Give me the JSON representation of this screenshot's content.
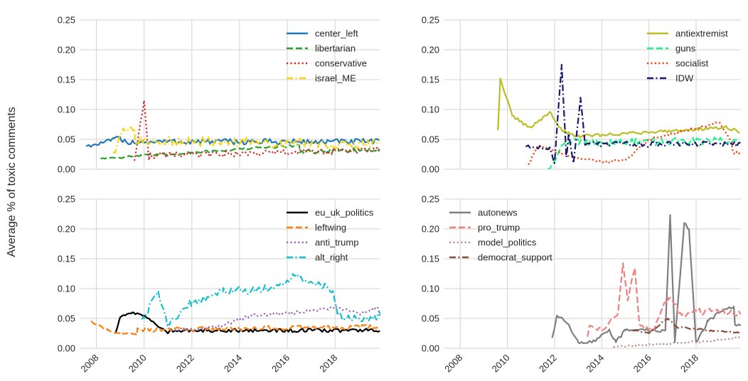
{
  "figure": {
    "ylabel": "Average % of toxic comments"
  },
  "chart_data": [
    {
      "type": "line",
      "panel": "top-left",
      "xlim": [
        2007.3,
        2019.9
      ],
      "ylim": [
        0,
        0.25
      ],
      "xticks": [
        2008,
        2010,
        2012,
        2014,
        2016,
        2018
      ],
      "yticks": [
        "0.00",
        "0.05",
        "0.10",
        "0.15",
        "0.20",
        "0.25"
      ],
      "show_xtick_labels": false,
      "legend_loc": "upper-right",
      "series": [
        {
          "name": "center_left",
          "color": "#1f77b4",
          "dash": "solid",
          "start": 2007.6,
          "end": 2019.9,
          "base": 0.046,
          "amp": 0.005,
          "trend": 0.0,
          "points": [
            [
              2007.6,
              0.039
            ],
            [
              2008.0,
              0.041
            ],
            [
              2009.0,
              0.054
            ]
          ]
        },
        {
          "name": "libertarian",
          "color": "#2ca02c",
          "dash": "dashed",
          "start": 2008.2,
          "end": 2019.9,
          "base": 0.027,
          "amp": 0.004,
          "trend": 0.001,
          "points": [
            [
              2008.2,
              0.018
            ],
            [
              2016.5,
              0.04
            ]
          ]
        },
        {
          "name": "conservative",
          "color": "#d62728",
          "dash": "dotted",
          "start": 2009.6,
          "end": 2019.9,
          "base": 0.026,
          "amp": 0.005,
          "trend": 0.001,
          "points": [
            [
              2009.6,
              0.015
            ],
            [
              2010.0,
              0.115
            ],
            [
              2010.2,
              0.015
            ]
          ]
        },
        {
          "name": "israel_ME",
          "color": "#f5d50f",
          "dash": "dashdot",
          "start": 2008.7,
          "end": 2019.9,
          "base": 0.045,
          "amp": 0.008,
          "trend": -0.0005,
          "points": [
            [
              2008.8,
              0.03
            ],
            [
              2009.1,
              0.065
            ],
            [
              2009.6,
              0.068
            ]
          ]
        }
      ]
    },
    {
      "type": "line",
      "panel": "top-right",
      "xlim": [
        2007.3,
        2019.9
      ],
      "ylim": [
        0,
        0.25
      ],
      "xticks": [
        2008,
        2010,
        2012,
        2014,
        2016,
        2018
      ],
      "yticks": [
        "0.00",
        "0.05",
        "0.10",
        "0.15",
        "0.20",
        "0.25"
      ],
      "show_xtick_labels": false,
      "legend_loc": "upper-right",
      "series": [
        {
          "name": "antiextremist",
          "color": "#bcbd22",
          "dash": "solid",
          "start": 2009.6,
          "end": 2019.9,
          "base": 0.058,
          "amp": 0.005,
          "trend": 0.001,
          "points": [
            [
              2009.6,
              0.066
            ],
            [
              2009.7,
              0.152
            ],
            [
              2010.2,
              0.09
            ],
            [
              2010.7,
              0.075
            ],
            [
              2011.0,
              0.07
            ],
            [
              2011.8,
              0.096
            ],
            [
              2012.3,
              0.065
            ],
            [
              2013.0,
              0.055
            ],
            [
              2019.3,
              0.07
            ]
          ]
        },
        {
          "name": "guns",
          "color": "#1ef287",
          "dash": "dashed",
          "start": 2011.7,
          "end": 2019.9,
          "base": 0.045,
          "amp": 0.006,
          "trend": 0.0005,
          "points": [
            [
              2011.8,
              0.0
            ],
            [
              2012.3,
              0.04
            ],
            [
              2013.0,
              0.05
            ]
          ]
        },
        {
          "name": "socialist",
          "color": "#f2400f",
          "dash": "dotted",
          "start": 2010.9,
          "end": 2019.9,
          "base": 0.015,
          "amp": 0.004,
          "trend": 0.002,
          "points": [
            [
              2010.9,
              0.008
            ],
            [
              2011.3,
              0.04
            ],
            [
              2012.8,
              0.02
            ],
            [
              2014.0,
              0.012
            ],
            [
              2015.0,
              0.015
            ],
            [
              2016.0,
              0.05
            ],
            [
              2019.0,
              0.078
            ],
            [
              2019.5,
              0.045
            ]
          ]
        },
        {
          "name": "IDW",
          "color": "#191970",
          "dash": "dashdot",
          "start": 2010.8,
          "end": 2019.9,
          "base": 0.042,
          "amp": 0.005,
          "trend": 0.0,
          "points": [
            [
              2010.8,
              0.038
            ],
            [
              2011.8,
              0.035
            ],
            [
              2012.0,
              0.01
            ],
            [
              2012.3,
              0.175
            ],
            [
              2012.5,
              0.02
            ],
            [
              2012.6,
              0.06
            ],
            [
              2012.8,
              0.01
            ],
            [
              2013.1,
              0.12
            ],
            [
              2013.3,
              0.04
            ]
          ]
        }
      ]
    },
    {
      "type": "line",
      "panel": "bottom-left",
      "xlim": [
        2007.3,
        2019.9
      ],
      "ylim": [
        0,
        0.25
      ],
      "xticks": [
        2008,
        2010,
        2012,
        2014,
        2016,
        2018
      ],
      "yticks": [
        "0.00",
        "0.05",
        "0.10",
        "0.15",
        "0.20",
        "0.25"
      ],
      "show_xtick_labels": true,
      "legend_loc": "upper-right",
      "series": [
        {
          "name": "eu_uk_politics",
          "color": "#000000",
          "dash": "solid",
          "start": 2008.8,
          "end": 2019.9,
          "base": 0.03,
          "amp": 0.003,
          "trend": 0.0,
          "points": [
            [
              2008.8,
              0.025
            ],
            [
              2009.0,
              0.052
            ],
            [
              2009.5,
              0.06
            ],
            [
              2010.0,
              0.055
            ],
            [
              2011.0,
              0.025
            ]
          ]
        },
        {
          "name": "leftwing",
          "color": "#ff7f0e",
          "dash": "dashed",
          "start": 2007.8,
          "end": 2019.9,
          "base": 0.033,
          "amp": 0.004,
          "trend": 0.0005,
          "points": [
            [
              2007.8,
              0.045
            ],
            [
              2008.5,
              0.03
            ],
            [
              2009.7,
              0.022
            ]
          ]
        },
        {
          "name": "anti_trump",
          "color": "#9467bd",
          "dash": "dotted",
          "start": 2011.3,
          "end": 2019.9,
          "base": 0.045,
          "amp": 0.005,
          "trend": 0.002,
          "points": [
            [
              2011.3,
              0.03
            ],
            [
              2013.0,
              0.035
            ],
            [
              2014.5,
              0.055
            ],
            [
              2016.5,
              0.06
            ],
            [
              2018.0,
              0.068
            ],
            [
              2019.0,
              0.058
            ],
            [
              2019.8,
              0.068
            ]
          ]
        },
        {
          "name": "alt_right",
          "color": "#17becf",
          "dash": "dashdot",
          "start": 2009.9,
          "end": 2019.9,
          "base": 0.075,
          "amp": 0.014,
          "trend": 0.002,
          "points": [
            [
              2010.0,
              0.05
            ],
            [
              2010.6,
              0.095
            ],
            [
              2011.0,
              0.04
            ],
            [
              2012.0,
              0.078
            ],
            [
              2013.3,
              0.095
            ],
            [
              2015.4,
              0.1
            ],
            [
              2016.2,
              0.12
            ],
            [
              2017.9,
              0.098
            ],
            [
              2018.1,
              0.055
            ],
            [
              2019.0,
              0.05
            ],
            [
              2019.9,
              0.055
            ]
          ]
        }
      ]
    },
    {
      "type": "line",
      "panel": "bottom-right",
      "xlim": [
        2007.3,
        2019.9
      ],
      "ylim": [
        0,
        0.25
      ],
      "xticks": [
        2008,
        2010,
        2012,
        2014,
        2016,
        2018
      ],
      "yticks": [
        "0.00",
        "0.05",
        "0.10",
        "0.15",
        "0.20",
        "0.25"
      ],
      "show_xtick_labels": true,
      "legend_loc": "upper-left",
      "series": [
        {
          "name": "autonews",
          "color": "#7f7f7f",
          "dash": "solid",
          "start": 2011.9,
          "end": 2019.9,
          "base": 0.035,
          "amp": 0.006,
          "trend": 0.0,
          "points": [
            [
              2011.9,
              0.018
            ],
            [
              2012.1,
              0.055
            ],
            [
              2012.6,
              0.04
            ],
            [
              2013.0,
              0.01
            ],
            [
              2013.6,
              0.01
            ],
            [
              2014.3,
              0.03
            ],
            [
              2014.6,
              0.01
            ],
            [
              2015.0,
              0.03
            ],
            [
              2016.7,
              0.03
            ],
            [
              2016.9,
              0.222
            ],
            [
              2017.1,
              0.01
            ],
            [
              2017.5,
              0.21
            ],
            [
              2017.7,
              0.2
            ],
            [
              2018.0,
              0.01
            ],
            [
              2018.5,
              0.045
            ],
            [
              2019.0,
              0.06
            ],
            [
              2019.6,
              0.07
            ]
          ]
        },
        {
          "name": "pro_trump",
          "color": "#f08080",
          "dash": "dashed",
          "start": 2013.4,
          "end": 2019.9,
          "base": 0.06,
          "amp": 0.007,
          "trend": 0.0,
          "points": [
            [
              2013.4,
              0.02
            ],
            [
              2013.5,
              0.038
            ],
            [
              2014.0,
              0.03
            ],
            [
              2014.7,
              0.06
            ],
            [
              2014.9,
              0.142
            ],
            [
              2015.1,
              0.08
            ],
            [
              2015.4,
              0.135
            ],
            [
              2015.6,
              0.04
            ],
            [
              2016.2,
              0.03
            ],
            [
              2016.5,
              0.06
            ],
            [
              2016.8,
              0.085
            ],
            [
              2017.2,
              0.07
            ]
          ]
        },
        {
          "name": "model_politics",
          "color": "#bc8f8f",
          "dash": "dotted",
          "start": 2014.5,
          "end": 2019.9,
          "base": 0.008,
          "amp": 0.003,
          "trend": 0.002,
          "points": [
            [
              2014.5,
              0.002
            ],
            [
              2018.5,
              0.012
            ],
            [
              2019.9,
              0.018
            ]
          ]
        },
        {
          "name": "democrat_support",
          "color": "#8b4c39",
          "dash": "dashdot",
          "start": 2015.3,
          "end": 2019.9,
          "base": 0.03,
          "amp": 0.003,
          "trend": -0.0005,
          "points": [
            [
              2015.3,
              0.03
            ],
            [
              2016.0,
              0.025
            ],
            [
              2016.8,
              0.05
            ],
            [
              2017.2,
              0.035
            ],
            [
              2019.9,
              0.025
            ]
          ]
        }
      ]
    }
  ]
}
